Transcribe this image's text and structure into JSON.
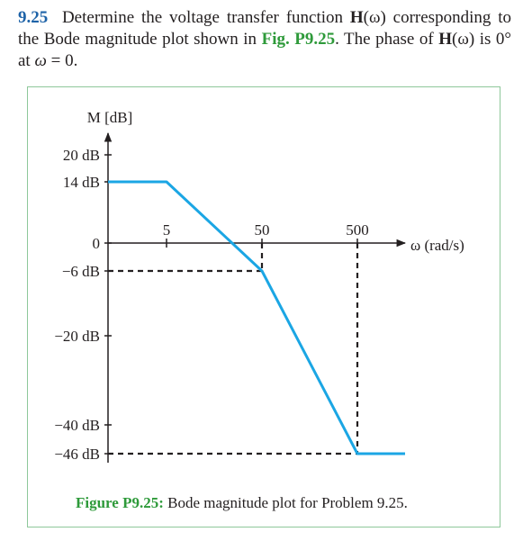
{
  "problem": {
    "number": "9.25",
    "text_before_H": "Determine the voltage transfer function ",
    "H": "H",
    "omega_arg": "(ω)",
    "text_corr": " corresponding to the Bode magnitude plot shown in ",
    "fig_ref": "Fig. P9.25",
    "text_after_ref": ". The phase of ",
    "text_is": " is 0° at ",
    "omega": "ω",
    "eq_zero": " = 0."
  },
  "chart_data": {
    "type": "line",
    "ylabel": "M [dB]",
    "xlabel": "ω (rad/s)",
    "x_scale": "log",
    "y_tick_labels": [
      {
        "value": 20,
        "label": "20 dB"
      },
      {
        "value": 14,
        "label": "14 dB"
      },
      {
        "value": 0,
        "label": "0"
      },
      {
        "value": -6,
        "label": "−6 dB"
      },
      {
        "value": -20,
        "label": "−20 dB"
      },
      {
        "value": -40,
        "label": "−40 dB"
      },
      {
        "value": -46,
        "label": "−46 dB"
      }
    ],
    "x_tick_labels": [
      {
        "value": 5,
        "label": "5"
      },
      {
        "value": 50,
        "label": "50"
      },
      {
        "value": 500,
        "label": "500"
      }
    ],
    "series": [
      {
        "color": "#1ba6e4",
        "x": [
          0.5,
          5,
          50,
          500,
          1000
        ],
        "y": [
          14,
          14,
          -6,
          -46,
          -46
        ]
      }
    ],
    "reference_lines": [
      {
        "from": [
          0.5,
          -6
        ],
        "to": [
          50,
          -6
        ]
      },
      {
        "from": [
          50,
          0
        ],
        "to": [
          50,
          -6
        ]
      },
      {
        "from": [
          0.5,
          -46
        ],
        "to": [
          500,
          -46
        ]
      },
      {
        "from": [
          500,
          0
        ],
        "to": [
          500,
          -46
        ]
      }
    ]
  },
  "caption": {
    "label": "Figure P9.25:",
    "text": " Bode magnitude plot for Problem 9.25."
  }
}
